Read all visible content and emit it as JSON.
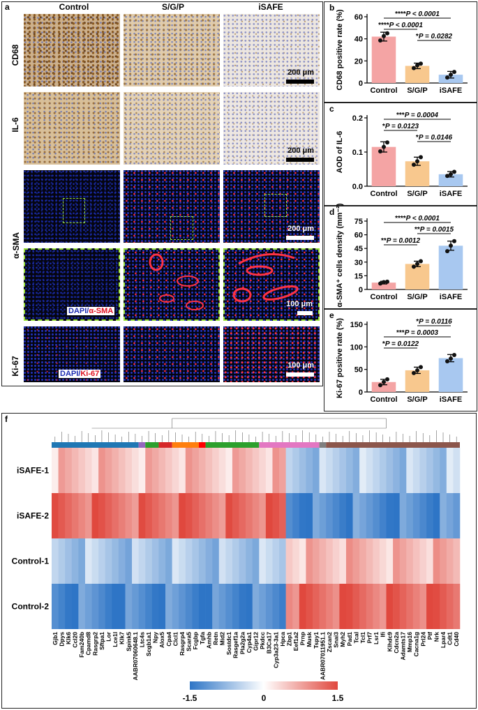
{
  "panels": {
    "a": "a",
    "b": "b",
    "c": "c",
    "d": "d",
    "e": "e",
    "f": "f"
  },
  "micro": {
    "columns": [
      "Control",
      "S/G/P",
      "iSAFE"
    ],
    "rows": [
      "CD68",
      "IL-6",
      "α-SMA",
      "Ki-67"
    ],
    "scale_200": "200 μm",
    "scale_100": "100 μm",
    "legend_sma_dapi": "DAPI/",
    "legend_sma_marker": "α-SMA",
    "legend_ki_dapi": "DAPI/",
    "legend_ki_marker": "Ki-67"
  },
  "colors": {
    "control": "#f4a4a4",
    "sgp": "#f8c88e",
    "isafe": "#a8c8f0",
    "heat_low": "#2e75c6",
    "heat_mid": "#ffffff",
    "heat_high": "#e0483e",
    "cluster_colors": [
      "#1f77b4",
      "#9467bd",
      "#2ca02c",
      "#d62728",
      "#ff7f0e",
      "#ff0000",
      "#2ca02c",
      "#e377c2",
      "#7f7f7f",
      "#8c564b"
    ]
  },
  "chart_data": [
    {
      "type": "bar",
      "panel": "b",
      "ylabel": "CD68 positive rate (%)",
      "categories": [
        "Control",
        "S/G/P",
        "iSAFE"
      ],
      "values": [
        42,
        15.5,
        7.5
      ],
      "points": [
        [
          38.5,
          42.5,
          45
        ],
        [
          13.5,
          16,
          17.5
        ],
        [
          5,
          7.5,
          10
        ]
      ],
      "errors": [
        4,
        2.5,
        3
      ],
      "ylim": [
        0,
        60
      ],
      "yticks": [
        0,
        20,
        40,
        60
      ],
      "comparisons": [
        {
          "label": "****P < 0.0001",
          "stars": "****",
          "rest": "P < 0.0001",
          "from": 0,
          "to": 2
        },
        {
          "label": "****P < 0.0001",
          "stars": "****",
          "rest": "P < 0.0001",
          "from": 0,
          "to": 1
        },
        {
          "label": "*P = 0.0282",
          "stars": "*",
          "rest": "P = 0.0282",
          "from": 1,
          "to": 2
        }
      ]
    },
    {
      "type": "bar",
      "panel": "c",
      "ylabel": "AOD of IL-6",
      "categories": [
        "Control",
        "S/G/P",
        "iSAFE"
      ],
      "values": [
        0.115,
        0.073,
        0.035
      ],
      "points": [
        [
          0.102,
          0.115,
          0.128
        ],
        [
          0.063,
          0.073,
          0.085
        ],
        [
          0.03,
          0.035,
          0.042
        ]
      ],
      "errors": [
        0.015,
        0.012,
        0.008
      ],
      "ylim": [
        0,
        0.2
      ],
      "yticks": [
        0.0,
        0.1,
        0.2
      ],
      "comparisons": [
        {
          "label": "***P = 0.0004",
          "stars": "***",
          "rest": "P = 0.0004",
          "from": 0,
          "to": 2
        },
        {
          "label": "*P = 0.0123",
          "stars": "*",
          "rest": "P = 0.0123",
          "from": 0,
          "to": 1
        },
        {
          "label": "*P = 0.0146",
          "stars": "*",
          "rest": "P = 0.0146",
          "from": 1,
          "to": 2
        }
      ]
    },
    {
      "type": "bar",
      "panel": "d",
      "ylabel": "α-SMA⁺ cells density (mm⁻²)",
      "categories": [
        "Control",
        "S/G/P",
        "iSAFE"
      ],
      "values": [
        7.5,
        28,
        48
      ],
      "points": [
        [
          6.5,
          8,
          8.5
        ],
        [
          25,
          28,
          31
        ],
        [
          42,
          48,
          53
        ]
      ],
      "errors": [
        1.5,
        3,
        5
      ],
      "ylim": [
        0,
        75
      ],
      "yticks": [
        0,
        15,
        30,
        45,
        60,
        75
      ],
      "comparisons": [
        {
          "label": "****P < 0.0001",
          "stars": "****",
          "rest": "P < 0.0001",
          "from": 0,
          "to": 2
        },
        {
          "label": "**P = 0.0015",
          "stars": "**",
          "rest": "P = 0.0015",
          "from": 1,
          "to": 2
        },
        {
          "label": "**P = 0.0012",
          "stars": "**",
          "rest": "P = 0.0012",
          "from": 0,
          "to": 1
        }
      ]
    },
    {
      "type": "bar",
      "panel": "e",
      "ylabel": "Ki-67 positive rate (%)",
      "categories": [
        "Control",
        "S/G/P",
        "iSAFE"
      ],
      "values": [
        22,
        48,
        75
      ],
      "points": [
        [
          15,
          22,
          28
        ],
        [
          42,
          48,
          55
        ],
        [
          68,
          74,
          82
        ]
      ],
      "errors": [
        6,
        7,
        8
      ],
      "ylim": [
        0,
        150
      ],
      "yticks": [
        0,
        50,
        100,
        150
      ],
      "comparisons": [
        {
          "label": "*P = 0.0116",
          "stars": "*",
          "rest": "P = 0.0116",
          "from": 1,
          "to": 2
        },
        {
          "label": "***P = 0.0003",
          "stars": "***",
          "rest": "P = 0.0003",
          "from": 0,
          "to": 2
        },
        {
          "label": "*P = 0.0122",
          "stars": "*",
          "rest": "P = 0.0122",
          "from": 0,
          "to": 1
        }
      ]
    },
    {
      "type": "heatmap",
      "panel": "f",
      "rows": [
        "iSAFE-1",
        "iSAFE-2",
        "Control-1",
        "Control-2"
      ],
      "columns": [
        "Gjb1",
        "Dpys",
        "Klk6",
        "Ccl20",
        "Fam240b",
        "Cpamd8",
        "Rasgrp2",
        "Sftpa1",
        "Lor",
        "Lce1l",
        "Klk7",
        "Spink5",
        "AABR07060648.1",
        "Ltc4s",
        "Scgb1a1",
        "Npy",
        "Alox5",
        "Cpa4",
        "Clcl1",
        "Rasgrp4",
        "Scara5",
        "Fcgbp",
        "Tgfa",
        "Amhb",
        "Retn",
        "Mid2",
        "Sostdc1",
        "Rasgef1a",
        "Pla2g2a",
        "Cyp4a1",
        "Gipr12",
        "Pkdcc",
        "B3Ca17",
        "Cyp3a23-3a1",
        "Hpca",
        "Zbp1",
        "Eef1a2",
        "Prnp",
        "Musk",
        "Tspy1",
        "AABR07011951.1",
        "Zscan2",
        "Snai3",
        "Myh2",
        "Pad1",
        "Tcal",
        "Tcl1",
        "Prf7",
        "Lsr1",
        "Ifi",
        "Klhdc9",
        "Cdcn2a",
        "Adamts17",
        "Mmp16",
        "Cacna1g",
        "Prl24",
        "Ptf",
        "Nrk",
        "Lpar4",
        "Cdt1",
        "Cd40"
      ],
      "colorbar_ticks": [
        "-1.5",
        "0",
        "1.5"
      ],
      "clim": [
        -1.5,
        1.5
      ]
    }
  ]
}
